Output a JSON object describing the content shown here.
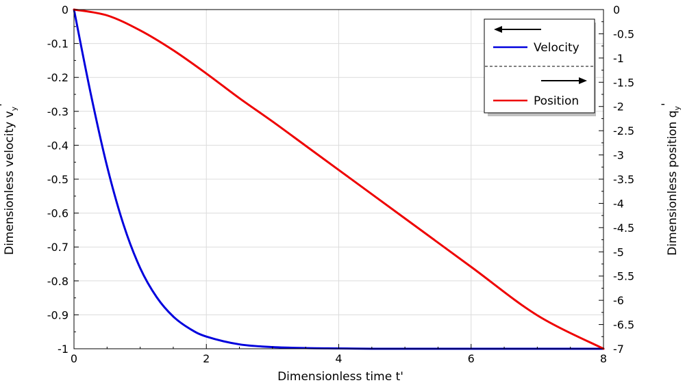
{
  "chart_data": {
    "type": "line",
    "xlabel": "Dimensionless time t'",
    "ylabel_left": "Dimensionless velocity v",
    "ylabel_left_sub": "y",
    "ylabel_left_sup": "'",
    "ylabel_right": "Dimensionless position q",
    "ylabel_right_sub": "y",
    "ylabel_right_sup": "'",
    "xlim": [
      0,
      8
    ],
    "ylim_left": [
      -1,
      0
    ],
    "ylim_right": [
      -7,
      0
    ],
    "x_ticks": [
      "0",
      "2",
      "4",
      "6",
      "8"
    ],
    "y_left_ticks": [
      "0",
      "-0.1",
      "-0.2",
      "-0.3",
      "-0.4",
      "-0.5",
      "-0.6",
      "-0.7",
      "-0.8",
      "-0.9",
      "-1"
    ],
    "y_right_ticks": [
      "0",
      "-0.5",
      "-1",
      "-1.5",
      "-2",
      "-2.5",
      "-3",
      "-3.5",
      "-4",
      "-4.5",
      "-5",
      "-5.5",
      "-6",
      "-6.5",
      "-7"
    ],
    "grid": true,
    "legend_position": "top-right",
    "series": [
      {
        "name": "Velocity",
        "axis": "left",
        "color": "#0000dd",
        "x": [
          0,
          0.25,
          0.5,
          0.75,
          1,
          1.25,
          1.5,
          1.75,
          2,
          2.5,
          3,
          3.5,
          4,
          4.5,
          5,
          6,
          7,
          8
        ],
        "y": [
          0,
          -0.245,
          -0.462,
          -0.635,
          -0.762,
          -0.848,
          -0.905,
          -0.941,
          -0.964,
          -0.987,
          -0.995,
          -0.998,
          -0.999,
          -1.0,
          -1.0,
          -1.0,
          -1.0,
          -1.0
        ]
      },
      {
        "name": "Position",
        "axis": "right",
        "color": "#ee0000",
        "x": [
          0,
          0.5,
          1,
          1.5,
          2,
          2.5,
          3,
          3.5,
          4,
          5,
          6,
          7,
          8
        ],
        "y": [
          0,
          -0.12,
          -0.43,
          -0.84,
          -1.32,
          -1.83,
          -2.31,
          -2.81,
          -3.31,
          -4.31,
          -5.31,
          -6.31,
          -7.0
        ]
      }
    ]
  },
  "legend": {
    "velocity_label": "Velocity",
    "position_label": "Position",
    "velocity_axis_arrow": "left",
    "position_axis_arrow": "right"
  },
  "colors": {
    "velocity": "#0000dd",
    "position": "#ee0000",
    "grid": "#dcdcdc"
  }
}
